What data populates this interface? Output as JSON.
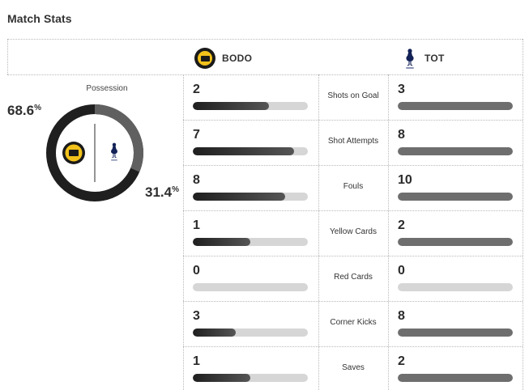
{
  "title": "Match Stats",
  "teams": {
    "home": {
      "name": "BODO",
      "badge_icon": "bodo-glimt-crest"
    },
    "away": {
      "name": "TOT",
      "badge_icon": "tottenham-cockerel-crest"
    }
  },
  "possession": {
    "label": "Possession",
    "home_text": "68.6",
    "away_text": "31.4",
    "unit": "%",
    "home_value": 68.6,
    "away_value": 31.4
  },
  "stats": [
    {
      "label": "Shots on Goal",
      "home": "2",
      "away": "3",
      "home_fill": 0.66,
      "away_fill": 1.0
    },
    {
      "label": "Shot Attempts",
      "home": "7",
      "away": "8",
      "home_fill": 0.88,
      "away_fill": 1.0
    },
    {
      "label": "Fouls",
      "home": "8",
      "away": "10",
      "home_fill": 0.8,
      "away_fill": 1.0
    },
    {
      "label": "Yellow Cards",
      "home": "1",
      "away": "2",
      "home_fill": 0.5,
      "away_fill": 1.0
    },
    {
      "label": "Red Cards",
      "home": "0",
      "away": "0",
      "home_fill": 0.0,
      "away_fill": 0.0
    },
    {
      "label": "Corner Kicks",
      "home": "3",
      "away": "8",
      "home_fill": 0.37,
      "away_fill": 1.0
    },
    {
      "label": "Saves",
      "home": "1",
      "away": "2",
      "home_fill": 0.5,
      "away_fill": 1.0
    }
  ],
  "colors": {
    "home_bar": "#2a2a2a",
    "away_bar": "#6e6e6e",
    "track": "#d6d6d6",
    "bodo_yellow": "#f2c21b",
    "tot_navy": "#132257"
  }
}
